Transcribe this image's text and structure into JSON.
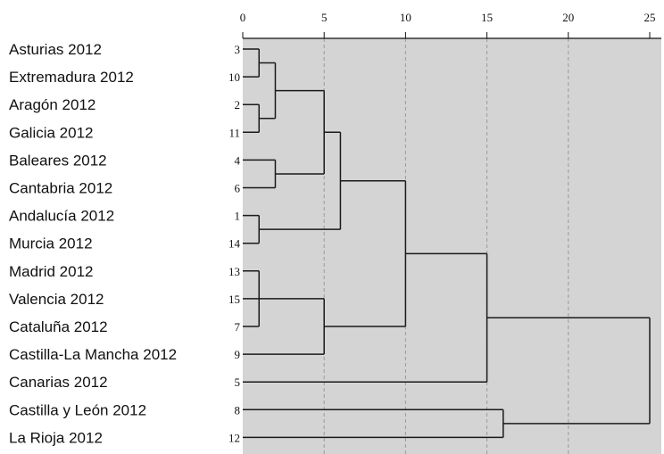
{
  "chart_data": {
    "type": "dendrogram",
    "x_axis": {
      "range": [
        0,
        25
      ],
      "ticks": [
        0,
        5,
        10,
        15,
        20,
        25
      ],
      "position": "top",
      "grid": "dashed at 5, 10, 15, 20"
    },
    "background_color": "#d4d4d4",
    "leaves": [
      {
        "label": "Asturias 2012",
        "case": "3"
      },
      {
        "label": "Extremadura 2012",
        "case": "10"
      },
      {
        "label": "Aragón 2012",
        "case": "2"
      },
      {
        "label": "Galicia 2012",
        "case": "11"
      },
      {
        "label": "Baleares 2012",
        "case": "4"
      },
      {
        "label": "Cantabria 2012",
        "case": "6"
      },
      {
        "label": "Andalucía 2012",
        "case": "1"
      },
      {
        "label": "Murcia 2012",
        "case": "14"
      },
      {
        "label": "Madrid 2012",
        "case": "13"
      },
      {
        "label": "Valencia 2012",
        "case": "15"
      },
      {
        "label": "Cataluña 2012",
        "case": "7"
      },
      {
        "label": "Castilla-La Mancha 2012",
        "case": "9"
      },
      {
        "label": "Canarias 2012",
        "case": "5"
      },
      {
        "label": "Castilla y León 2012",
        "case": "8"
      },
      {
        "label": "La Rioja 2012",
        "case": "12"
      }
    ],
    "merges": [
      {
        "id": "A",
        "children": [
          0,
          1
        ],
        "distance": 1
      },
      {
        "id": "B",
        "children": [
          2,
          3
        ],
        "distance": 1
      },
      {
        "id": "C",
        "children": [
          "A",
          "B"
        ],
        "distance": 2
      },
      {
        "id": "D",
        "children": [
          4,
          5
        ],
        "distance": 2
      },
      {
        "id": "E",
        "children": [
          "C",
          "D"
        ],
        "distance": 5
      },
      {
        "id": "F",
        "children": [
          6,
          7
        ],
        "distance": 1
      },
      {
        "id": "G",
        "children": [
          "E",
          "F"
        ],
        "distance": 6
      },
      {
        "id": "H",
        "children": [
          8,
          9,
          10
        ],
        "distance": 1
      },
      {
        "id": "I",
        "children": [
          "H",
          11
        ],
        "distance": 5
      },
      {
        "id": "J",
        "children": [
          "G",
          "I"
        ],
        "distance": 10
      },
      {
        "id": "K",
        "children": [
          "J",
          12
        ],
        "distance": 15
      },
      {
        "id": "L",
        "children": [
          13,
          14
        ],
        "distance": 16
      },
      {
        "id": "M",
        "children": [
          "K",
          "L"
        ],
        "distance": 25
      }
    ]
  }
}
